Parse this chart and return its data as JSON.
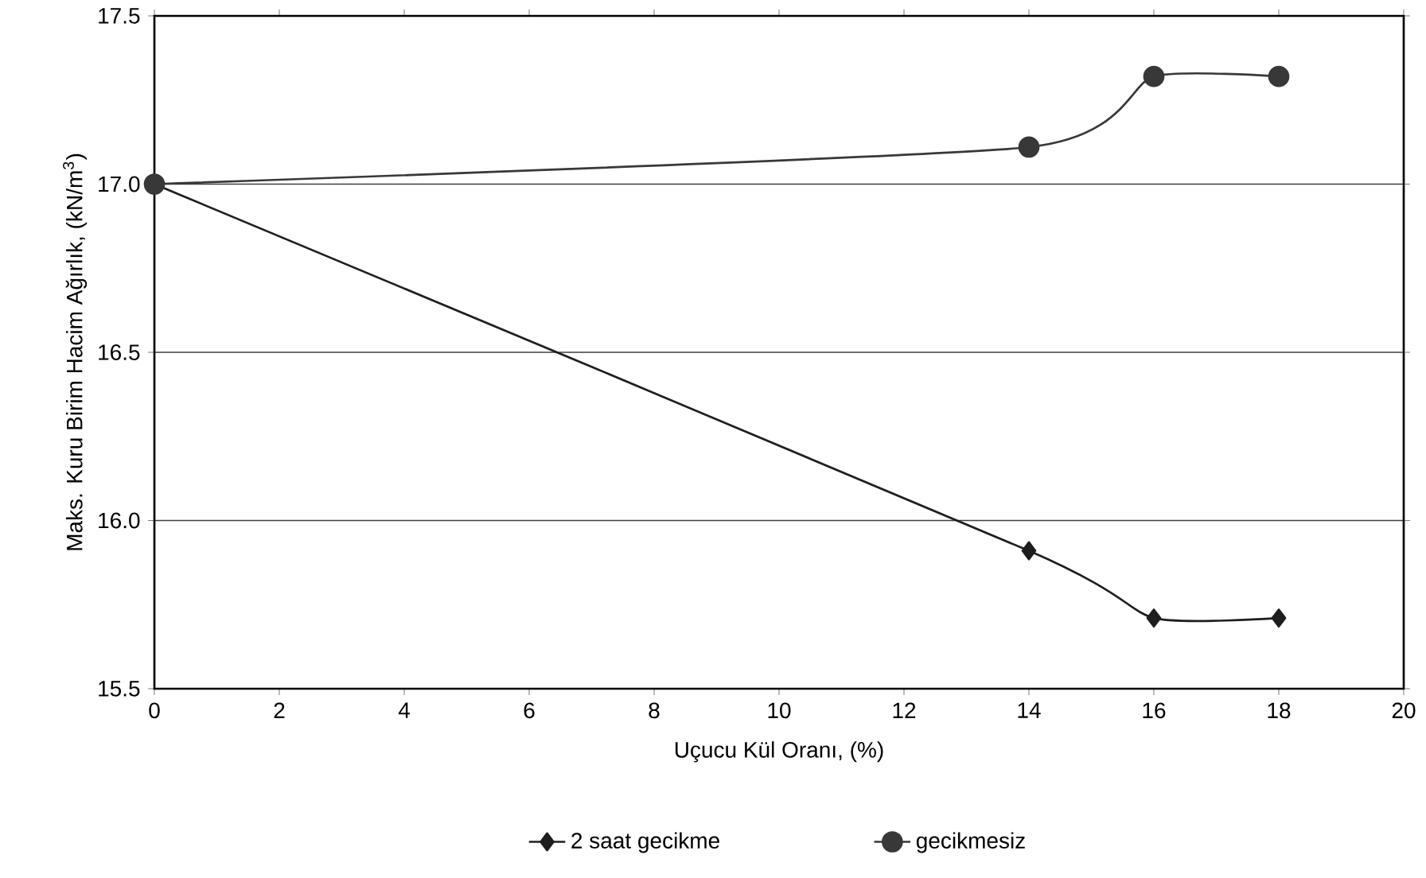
{
  "chart_data": {
    "type": "line",
    "xlabel": "Uçucu Kül Oranı, (%)",
    "ylabel": "Maks. Kuru Birim Hacim Ağırlık, (kN/m$^{3}$)",
    "x": [
      0,
      14,
      16,
      18
    ],
    "series": [
      {
        "name": "2 saat gecikme",
        "color": "#1e1e1e",
        "marker": "diamond",
        "values": [
          17.0,
          15.91,
          15.71,
          15.71
        ]
      },
      {
        "name": "gecikmesiz",
        "color": "#383838",
        "marker": "circle",
        "values": [
          17.0,
          17.11,
          17.32,
          17.32
        ]
      }
    ],
    "xlim": [
      0,
      20
    ],
    "xticks": [
      0,
      2,
      4,
      6,
      8,
      10,
      12,
      14,
      16,
      18,
      20
    ],
    "ylim": [
      15.5,
      17.5
    ],
    "yticks": [
      {
        "value": 15.5,
        "label": "15.5"
      },
      {
        "value": 16.0,
        "label": "16.0"
      },
      {
        "value": 16.5,
        "label": "16.5"
      },
      {
        "value": 17.0,
        "label": "17.0"
      },
      {
        "value": 17.5,
        "label": "17.5"
      }
    ],
    "grid": "y",
    "legend": "bottom",
    "line_style": "solid"
  }
}
